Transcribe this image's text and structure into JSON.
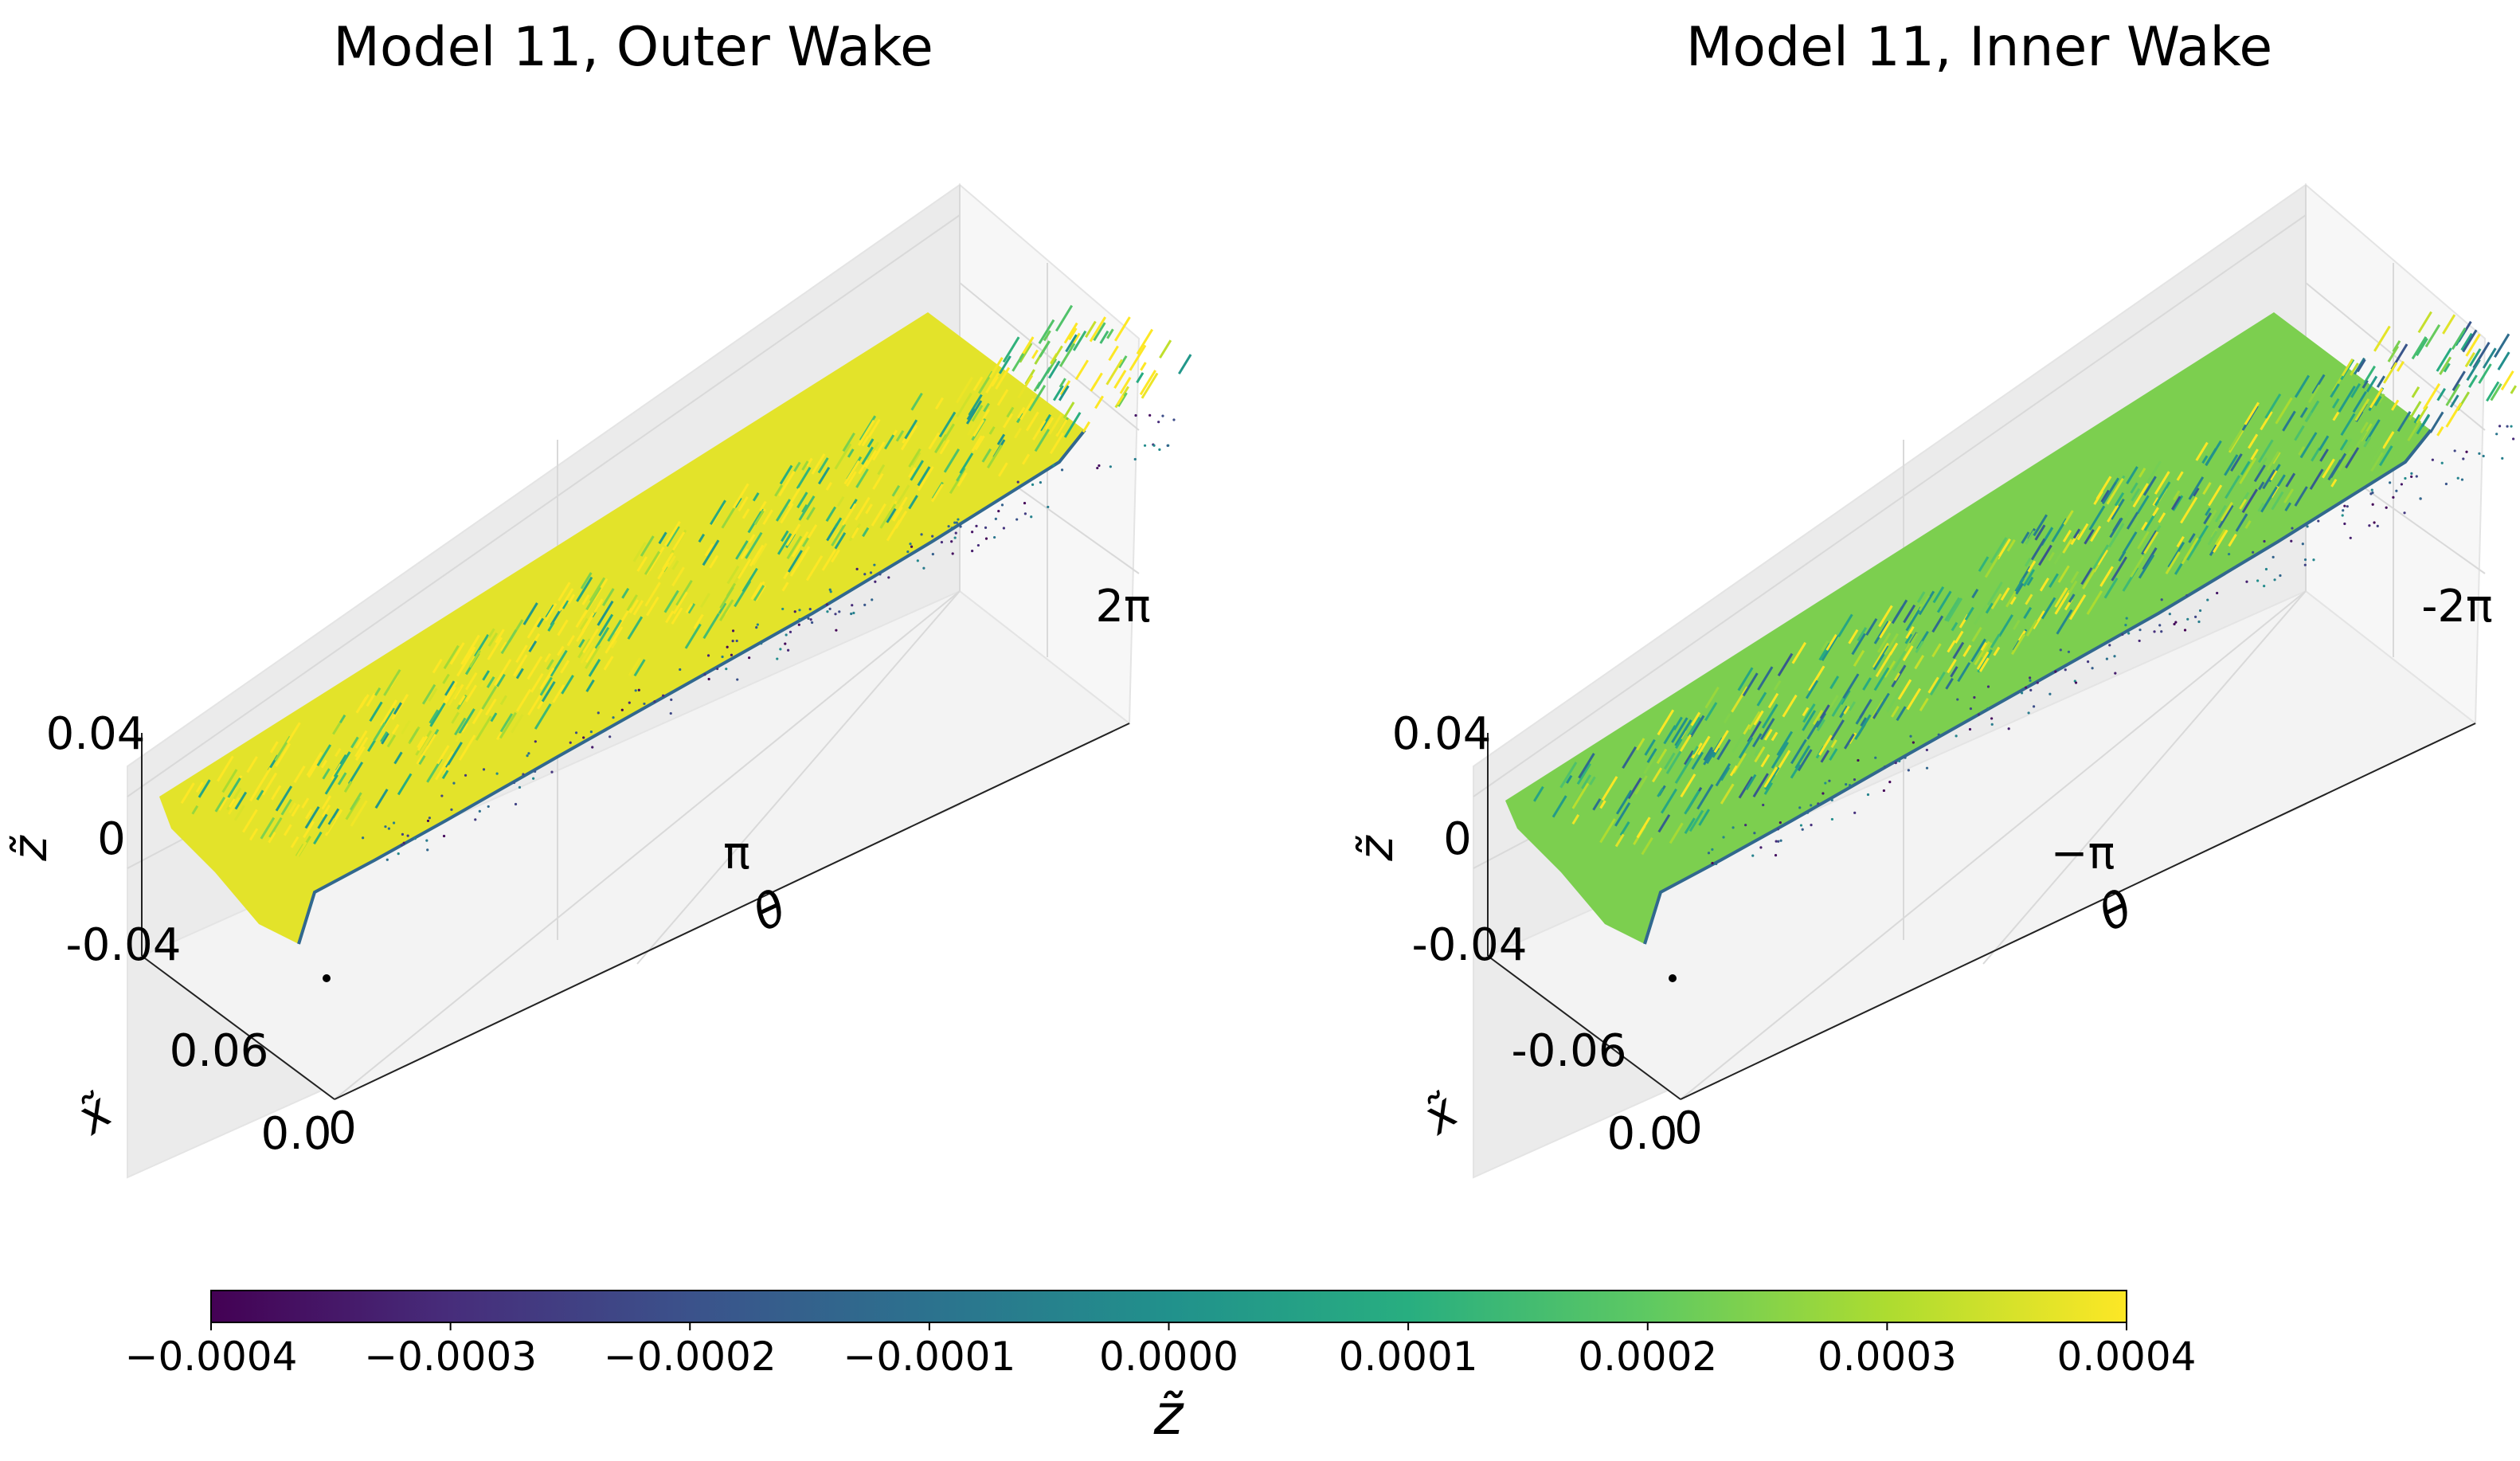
{
  "chart_data": [
    {
      "type": "scatter",
      "projection": "3d",
      "title": "Model 11, Outer Wake",
      "xlabel": "x̃",
      "ylabel": "θ",
      "zlabel": "z̃",
      "x_ticks": [
        "0.06",
        "0.0"
      ],
      "y_ticks": [
        "0",
        "π",
        "2π"
      ],
      "z_ticks": [
        "0.04",
        "0",
        "-0.04"
      ],
      "xlim": [
        0.0,
        0.08
      ],
      "ylim": [
        0,
        6.2832
      ],
      "zlim": [
        -0.04,
        0.04
      ],
      "color_variable": "z̃",
      "color_range": [
        -0.0004,
        0.0004
      ],
      "dominant_color_value": 0.0004,
      "surface_z": 0
    },
    {
      "type": "scatter",
      "projection": "3d",
      "title": "Model 11, Inner Wake",
      "xlabel": "x̃",
      "ylabel": "θ",
      "zlabel": "z̃",
      "x_ticks": [
        "-0.06",
        "0.0"
      ],
      "y_ticks": [
        "0",
        "−π",
        "-2π"
      ],
      "z_ticks": [
        "0.04",
        "0",
        "-0.04"
      ],
      "xlim": [
        -0.08,
        0.0
      ],
      "ylim": [
        0,
        -6.2832
      ],
      "zlim": [
        -0.04,
        0.04
      ],
      "color_variable": "z̃",
      "color_range": [
        -0.0004,
        0.0004
      ],
      "dominant_color_value": 0.0002,
      "surface_z": 0
    }
  ],
  "colorbar": {
    "label": "z̃",
    "colormap": "viridis",
    "min": -0.0004,
    "max": 0.0004,
    "tick_values": [
      -0.0004,
      -0.0003,
      -0.0002,
      -0.0001,
      0.0,
      0.0001,
      0.0002,
      0.0003,
      0.0004
    ],
    "tick_labels": [
      "−0.0004",
      "−0.0003",
      "−0.0002",
      "−0.0001",
      "0.0000",
      "0.0001",
      "0.0002",
      "0.0003",
      "0.0004"
    ],
    "colors": [
      "#440154",
      "#472d7b",
      "#3b528b",
      "#2c728e",
      "#21918c",
      "#28ae80",
      "#5ec962",
      "#addc30",
      "#fde725"
    ]
  }
}
